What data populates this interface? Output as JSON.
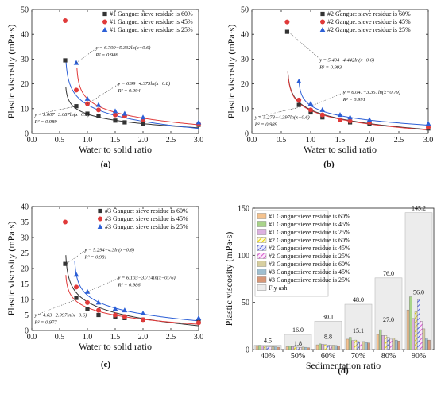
{
  "figure": {
    "panels": [
      {
        "label": "(a)",
        "chart_data": {
          "type": "scatter",
          "xlabel": "Water to solid ratio",
          "ylabel": "Plastic viscosity (mPa·s)",
          "xlim": [
            0.0,
            3.0
          ],
          "ylim": [
            0,
            50
          ],
          "xticks": [
            "0.0",
            "0.5",
            "1.0",
            "1.5",
            "2.0",
            "2.5",
            "3.0"
          ],
          "yticks": [
            "0",
            "10",
            "20",
            "30",
            "40",
            "50"
          ],
          "legend_position": "top-right",
          "series": [
            {
              "name": "#1  Gangue: sieve residue is 60%",
              "color": "#333333",
              "marker": "square",
              "points": [
                [
                  0.6,
                  29.5
                ],
                [
                  0.8,
                  11.0
                ],
                [
                  1.0,
                  8.0
                ],
                [
                  1.2,
                  7.0
                ],
                [
                  1.5,
                  5.2
                ],
                [
                  1.67,
                  4.5
                ],
                [
                  2.0,
                  4.0
                ],
                [
                  3.0,
                  3.5
                ]
              ],
              "fit": {
                "a": 5.007,
                "b": 3.087,
                "x0": 0.6
              }
            },
            {
              "name": "#1  Gangue: sieve residue is 45%",
              "color": "#e03a3a",
              "marker": "circle",
              "points": [
                [
                  0.6,
                  45.5
                ],
                [
                  0.8,
                  17.5
                ],
                [
                  1.0,
                  12.0
                ],
                [
                  1.2,
                  9.5
                ],
                [
                  1.5,
                  7.5
                ],
                [
                  1.67,
                  7.0
                ],
                [
                  2.0,
                  5.5
                ],
                [
                  3.0,
                  3.8
                ]
              ],
              "fit": {
                "a": 6.99,
                "b": 4.373,
                "x0": 0.8
              }
            },
            {
              "name": "#1  Gangue: sieve residue is 25%",
              "color": "#2c5fd6",
              "marker": "triangle",
              "points": [
                [
                  0.8,
                  28.5
                ],
                [
                  1.0,
                  14.0
                ],
                [
                  1.2,
                  11.5
                ],
                [
                  1.5,
                  9.0
                ],
                [
                  1.67,
                  8.0
                ],
                [
                  2.0,
                  6.5
                ],
                [
                  3.0,
                  4.5
                ]
              ],
              "fit": {
                "a": 6.709,
                "b": 5.332,
                "x0": 0.6
              }
            }
          ],
          "annotations": [
            {
              "text": "y = 6.709−5.332ln(x−0.6)",
              "r2": "R² = 0.986",
              "ax": 1.15,
              "ay": 34,
              "px": 0.8,
              "py": 28.5
            },
            {
              "text": "y = 6.99−4.373ln(x−0.8)",
              "r2": "R² = 0.994",
              "ax": 1.55,
              "ay": 19.5,
              "px": 1.0,
              "py": 12.0
            },
            {
              "text": "y = 5.007−3.087ln(x−0.6)",
              "r2": "R² = 0.989",
              "ax": 0.05,
              "ay": 7,
              "px": 0.8,
              "py": 11.0
            }
          ]
        }
      },
      {
        "label": "(b)",
        "chart_data": {
          "type": "scatter",
          "xlabel": "Water to solid ratio",
          "ylabel": "Plastic viscosity (mPa·s)",
          "xlim": [
            0.0,
            3.0
          ],
          "ylim": [
            0,
            50
          ],
          "xticks": [
            "0.0",
            "0.5",
            "1.0",
            "1.5",
            "2.0",
            "2.5",
            "3.0"
          ],
          "yticks": [
            "0",
            "10",
            "20",
            "30",
            "40",
            "50"
          ],
          "legend_position": "top-right",
          "series": [
            {
              "name": "#2 Gangue: sieve residue is 60%",
              "color": "#333333",
              "marker": "square",
              "points": [
                [
                  0.6,
                  41.0
                ],
                [
                  0.8,
                  11.5
                ],
                [
                  1.0,
                  8.5
                ],
                [
                  1.2,
                  6.5
                ],
                [
                  1.5,
                  5.5
                ],
                [
                  1.67,
                  4.5
                ],
                [
                  2.0,
                  4.0
                ],
                [
                  3.0,
                  2.0
                ]
              ],
              "fit": {
                "a": 5.494,
                "b": 4.442,
                "x0": 0.6
              }
            },
            {
              "name": "#2 Gangue: sieve residue is 45%",
              "color": "#e03a3a",
              "marker": "circle",
              "points": [
                [
                  0.6,
                  45.0
                ],
                [
                  0.8,
                  13.5
                ],
                [
                  1.0,
                  9.5
                ],
                [
                  1.2,
                  7.5
                ],
                [
                  1.5,
                  5.5
                ],
                [
                  1.67,
                  5.0
                ],
                [
                  2.0,
                  4.5
                ],
                [
                  3.0,
                  2.5
                ]
              ],
              "fit": {
                "a": 5.278,
                "b": 4.397,
                "x0": 0.6
              }
            },
            {
              "name": "#2 Gangue: sieve residue is 25%",
              "color": "#2c5fd6",
              "marker": "triangle",
              "points": [
                [
                  0.8,
                  21.0
                ],
                [
                  1.0,
                  12.0
                ],
                [
                  1.2,
                  9.5
                ],
                [
                  1.5,
                  7.5
                ],
                [
                  1.67,
                  6.5
                ],
                [
                  2.0,
                  5.5
                ],
                [
                  3.0,
                  4.0
                ]
              ],
              "fit": {
                "a": 6.041,
                "b": 3.351,
                "x0": 0.79
              }
            }
          ],
          "annotations": [
            {
              "text": "y = 5.494−4.442ln(x−0.6)",
              "r2": "R² = 0.993",
              "ax": 1.15,
              "ay": 29,
              "px": 0.62,
              "py": 41.0
            },
            {
              "text": "y = 6.041−3.351ln(x−0.79)",
              "r2": "R² = 0.991",
              "ax": 1.55,
              "ay": 16,
              "px": 1.05,
              "py": 11.5
            },
            {
              "text": "y = 5.278−4.397ln(x−0.6)",
              "r2": "R² = 0.989",
              "ax": 0.05,
              "ay": 6,
              "px": 0.8,
              "py": 10.5
            }
          ]
        }
      },
      {
        "label": "(c)",
        "chart_data": {
          "type": "scatter",
          "xlabel": "Water to solid ratio",
          "ylabel": "Plastic viscosity (mPa·s)",
          "xlim": [
            0.0,
            3.0
          ],
          "ylim": [
            0,
            40
          ],
          "xticks": [
            "0.0",
            "0.5",
            "1.0",
            "1.5",
            "2.0",
            "2.5",
            "3.0"
          ],
          "yticks": [
            "0",
            "5",
            "10",
            "15",
            "20",
            "25",
            "30",
            "35",
            "40"
          ],
          "legend_position": "top-right",
          "series": [
            {
              "name": "#3 Gangue: sieve residue is 60%",
              "color": "#333333",
              "marker": "square",
              "points": [
                [
                  0.6,
                  21.5
                ],
                [
                  0.8,
                  10.5
                ],
                [
                  1.0,
                  7.0
                ],
                [
                  1.2,
                  5.0
                ],
                [
                  1.5,
                  4.5
                ],
                [
                  1.67,
                  4.0
                ],
                [
                  2.0,
                  3.5
                ],
                [
                  3.0,
                  3.0
                ]
              ],
              "fit": {
                "a": 5.294,
                "b": 4.3,
                "x0": 0.6
              }
            },
            {
              "name": "#3 Gangue: sieve residue is 45%",
              "color": "#e03a3a",
              "marker": "circle",
              "points": [
                [
                  0.6,
                  35.0
                ],
                [
                  0.8,
                  14.0
                ],
                [
                  1.0,
                  9.0
                ],
                [
                  1.2,
                  6.5
                ],
                [
                  1.5,
                  5.0
                ],
                [
                  1.67,
                  4.5
                ],
                [
                  2.0,
                  3.5
                ],
                [
                  3.0,
                  2.5
                ]
              ],
              "fit": {
                "a": 4.63,
                "b": 2.997,
                "x0": 0.6
              }
            },
            {
              "name": "#3 Gangue: sieve residue is 25%",
              "color": "#2c5fd6",
              "marker": "triangle",
              "points": [
                [
                  0.8,
                  18.0
                ],
                [
                  1.0,
                  12.5
                ],
                [
                  1.2,
                  9.0
                ],
                [
                  1.5,
                  7.0
                ],
                [
                  1.67,
                  6.5
                ],
                [
                  2.0,
                  5.5
                ],
                [
                  3.0,
                  4.0
                ]
              ],
              "fit": {
                "a": 6.103,
                "b": 3.714,
                "x0": 0.76
              }
            }
          ],
          "annotations": [
            {
              "text": "y = 5.294−4.3ln(x−0.6)",
              "r2": "R² = 0.981",
              "ax": 0.95,
              "ay": 25.5,
              "px": 0.62,
              "py": 21.5
            },
            {
              "text": "y = 6.103−3.714ln(x−0.76)",
              "r2": "R² = 0.986",
              "ax": 1.55,
              "ay": 16.5,
              "px": 1.0,
              "py": 12.5
            },
            {
              "text": "y = 4.63−2.997ln(x−0.6)",
              "r2": "R² = 0.977",
              "ax": 0.05,
              "ay": 4.5,
              "px": 0.8,
              "py": 10.0
            }
          ]
        }
      },
      {
        "label": "(d)",
        "chart_data": {
          "type": "bar",
          "xlabel": "Sedimentation ratio",
          "ylabel": "Plastic viscosity (mPa·s)",
          "ylim": [
            0,
            150
          ],
          "yticks": [
            "0",
            "50",
            "100",
            "150"
          ],
          "legend_position": "top-left",
          "categories": [
            "40%",
            "50%",
            "60%",
            "70%",
            "80%",
            "90%"
          ],
          "series": [
            {
              "name": "#1 Gangue:sieve residue is 60%",
              "color": "#f4c28e",
              "pattern": "solid",
              "values": [
                4.2,
                3.0,
                5.0,
                11.0,
                16.0,
                42.0
              ]
            },
            {
              "name": "#1 Gangue:sieve residue is 45%",
              "color": "#a9d48a",
              "pattern": "solid",
              "values": [
                4.5,
                3.5,
                6.0,
                13.0,
                21.0,
                56.0
              ]
            },
            {
              "name": "#1 Gangue:sieve residue is 25%",
              "color": "#ddb1e0",
              "pattern": "solid",
              "values": [
                3.8,
                3.2,
                5.5,
                9.5,
                15.0,
                33.0
              ]
            },
            {
              "name": "#2 Gangue:sieve residue is 60%",
              "color": "#f2e43a",
              "pattern": "hatch",
              "values": [
                3.5,
                2.8,
                5.2,
                10.0,
                15.0,
                40.0
              ]
            },
            {
              "name": "#2 Gangue:sieve residue is 45%",
              "color": "#7a86e0",
              "pattern": "hatch",
              "values": [
                3.0,
                2.5,
                4.8,
                8.5,
                13.0,
                53.0
              ]
            },
            {
              "name": "#2 Gangue:sieve residue is 25%",
              "color": "#e07ad8",
              "pattern": "hatch",
              "values": [
                2.8,
                2.2,
                4.5,
                8.0,
                11.0,
                30.0
              ]
            },
            {
              "name": "#3 Gangue:sieve residue is 60%",
              "color": "#d7cfa0",
              "pattern": "solid",
              "values": [
                3.2,
                2.6,
                4.6,
                8.5,
                12.0,
                22.0
              ]
            },
            {
              "name": "#3 Gangue:sieve residue is 45%",
              "color": "#9fbfd0",
              "pattern": "solid",
              "values": [
                2.9,
                2.4,
                4.3,
                7.5,
                10.0,
                12.0
              ]
            },
            {
              "name": "#3 Gangue:sieve residue is 25%",
              "color": "#d89878",
              "pattern": "solid",
              "values": [
                2.5,
                2.0,
                4.0,
                7.0,
                9.0,
                10.0
              ]
            },
            {
              "name": "Fly ash",
              "color": "#ececec",
              "pattern": "fly",
              "values": [
                4.5,
                16.0,
                30.1,
                48.0,
                76.0,
                145.2
              ]
            }
          ],
          "annotations": [
            {
              "category": "40%",
              "text": "4.5",
              "value": 4.5
            },
            {
              "category": "50%",
              "text": "16.0",
              "value": 16.0
            },
            {
              "category": "50%",
              "text": "1.8",
              "value": 1.8
            },
            {
              "category": "60%",
              "text": "30.1",
              "value": 30.1
            },
            {
              "category": "60%",
              "text": "8.8",
              "value": 8.8
            },
            {
              "category": "70%",
              "text": "48.0",
              "value": 48.0
            },
            {
              "category": "70%",
              "text": "15.1",
              "value": 15.1
            },
            {
              "category": "80%",
              "text": "76.0",
              "value": 76.0
            },
            {
              "category": "80%",
              "text": "27.0",
              "value": 27.0
            },
            {
              "category": "90%",
              "text": "145.2",
              "value": 145.2
            },
            {
              "category": "90%",
              "text": "56.0",
              "value": 56.0
            }
          ]
        }
      }
    ]
  }
}
